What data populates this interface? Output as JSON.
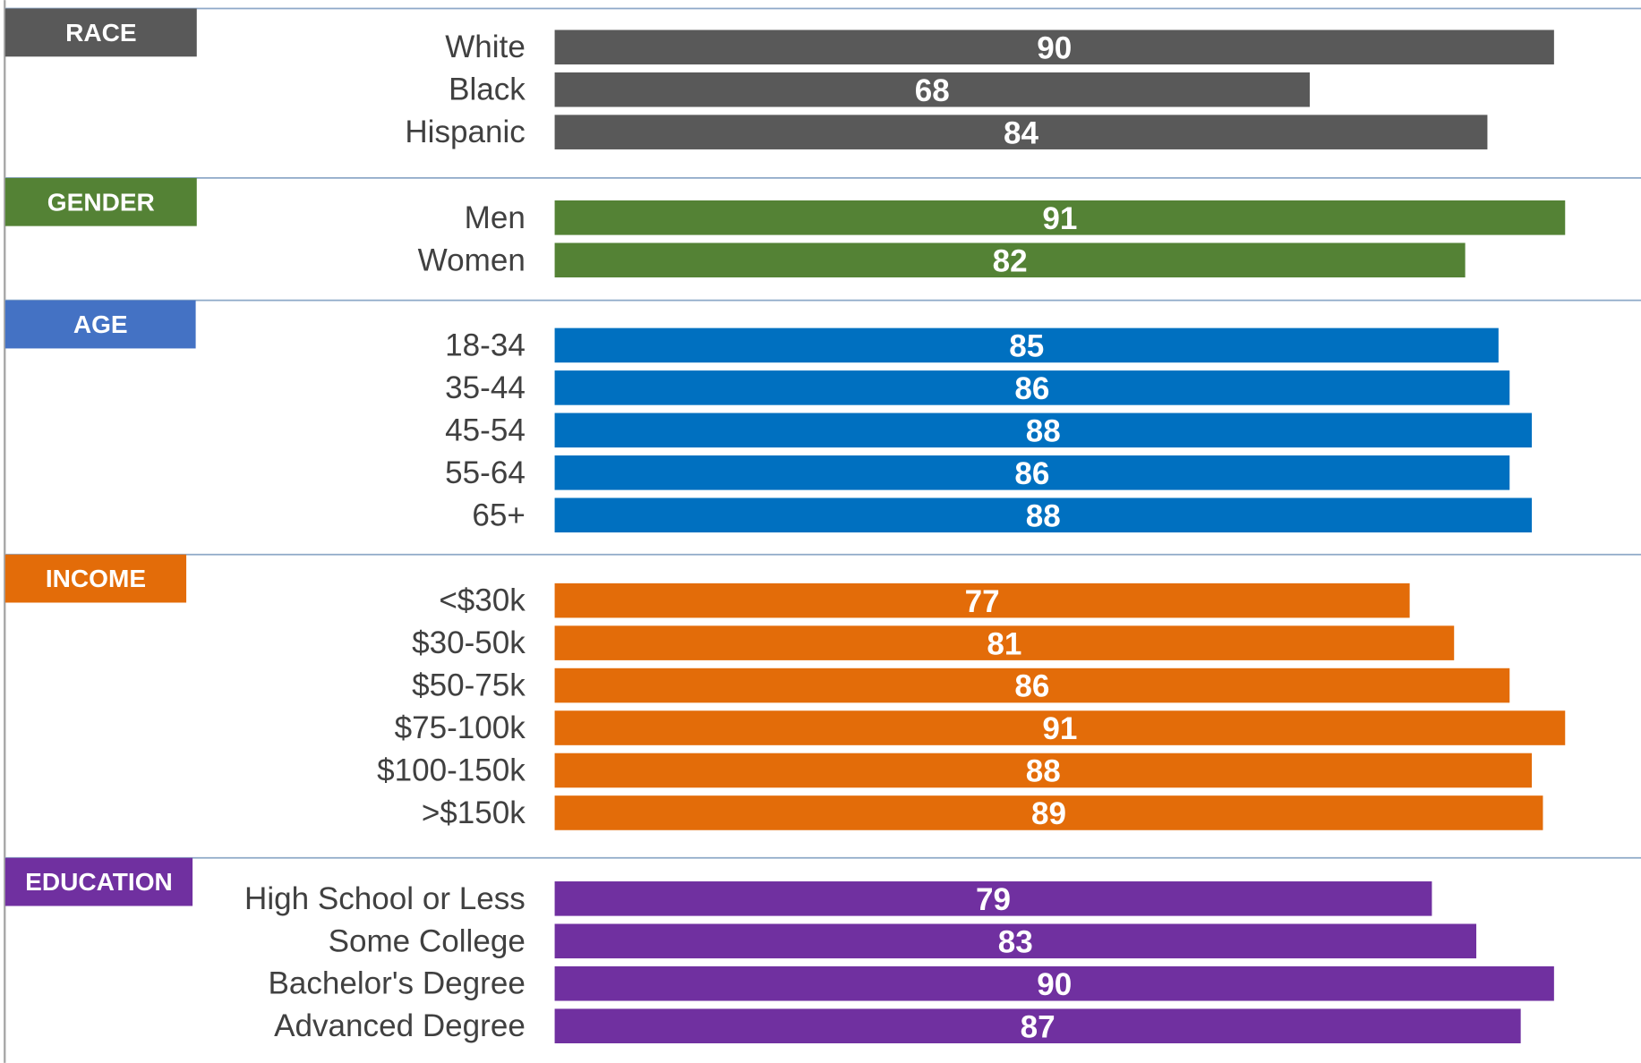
{
  "chart_data": {
    "type": "bar",
    "orientation": "horizontal",
    "groups": [
      {
        "name": "RACE",
        "header_color": "#595959",
        "color": "#595959",
        "categories": [
          "White",
          "Black",
          "Hispanic"
        ],
        "values": [
          90,
          68,
          84
        ]
      },
      {
        "name": "GENDER",
        "header_color": "#548235",
        "color": "#548235",
        "categories": [
          "Men",
          "Women"
        ],
        "values": [
          91,
          82
        ]
      },
      {
        "name": "AGE",
        "header_color": "#4472c4",
        "color": "#0070c0",
        "categories": [
          "18-34",
          "35-44",
          "45-54",
          "55-64",
          "65+"
        ],
        "values": [
          85,
          86,
          88,
          86,
          88
        ]
      },
      {
        "name": "INCOME",
        "header_color": "#e36c09",
        "color": "#e36c09",
        "categories": [
          "<$30k",
          "$30-50k",
          "$50-75k",
          "$75-100k",
          "$100-150k",
          ">$150k"
        ],
        "values": [
          77,
          81,
          86,
          91,
          88,
          89
        ]
      },
      {
        "name": "EDUCATION",
        "header_color": "#7030a0",
        "color": "#7030a0",
        "categories": [
          "High School or Less",
          "Some College",
          "Bachelor's Degree",
          "Advanced Degree"
        ],
        "values": [
          79,
          83,
          90,
          87
        ]
      }
    ]
  }
}
